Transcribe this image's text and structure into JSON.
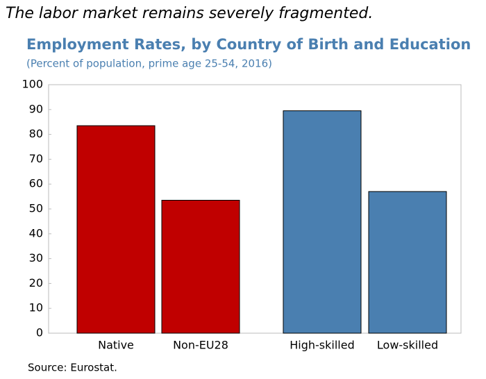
{
  "header": "The labor market remains severely fragmented.",
  "chart_data": {
    "type": "bar",
    "title": "Employment Rates, by Country of Birth and Education",
    "subtitle": "(Percent of population, prime age 25-54, 2016)",
    "categories": [
      "Native",
      "Non-EU28",
      "High-skilled",
      "Low-skilled"
    ],
    "values": [
      83.5,
      53.5,
      89.5,
      57
    ],
    "colors": [
      "#c00000",
      "#c00000",
      "#4a7fb0",
      "#4a7fb0"
    ],
    "ylim": [
      0,
      100
    ],
    "yticks": [
      0,
      10,
      20,
      30,
      40,
      50,
      60,
      70,
      80,
      90,
      100
    ],
    "source": "Source: Eurostat."
  }
}
